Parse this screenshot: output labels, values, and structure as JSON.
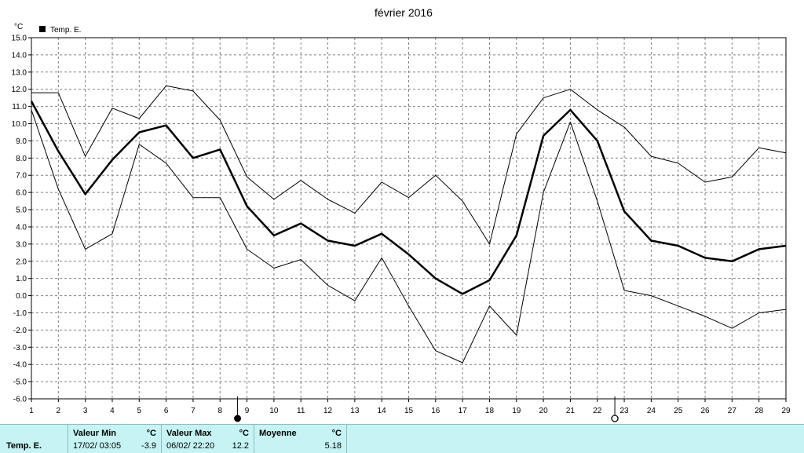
{
  "chart_data": {
    "type": "line",
    "title": "février 2016",
    "ylabel": "°C",
    "legend": {
      "label": "Temp. E.",
      "placement": "top-left"
    },
    "ylim": [
      -6.0,
      15.0
    ],
    "xlim": [
      1,
      29
    ],
    "yticks": [
      "15.0",
      "14.0",
      "13.0",
      "12.0",
      "11.0",
      "10.0",
      "9.0",
      "8.0",
      "7.0",
      "6.0",
      "5.0",
      "4.0",
      "3.0",
      "2.0",
      "1.0",
      "0.0",
      "-1.0",
      "-2.0",
      "-3.0",
      "-4.0",
      "-5.0",
      "-6.0"
    ],
    "x": [
      1,
      2,
      3,
      4,
      5,
      6,
      7,
      8,
      9,
      10,
      11,
      12,
      13,
      14,
      15,
      16,
      17,
      18,
      19,
      20,
      21,
      22,
      23,
      24,
      25,
      26,
      27,
      28,
      29
    ],
    "grid": true,
    "markers": [
      {
        "x": 9,
        "symbol": "filled-circle",
        "color": "#000000"
      },
      {
        "x": 23,
        "symbol": "open-circle",
        "color": "#000000"
      }
    ],
    "series": [
      {
        "role": "max",
        "values": [
          11.8,
          11.8,
          8.1,
          10.9,
          10.3,
          12.2,
          11.9,
          10.2,
          6.9,
          5.6,
          6.7,
          5.6,
          4.8,
          6.6,
          5.7,
          7.0,
          5.5,
          3.0,
          9.4,
          11.5,
          12.0,
          10.8,
          9.8,
          8.1,
          7.7,
          6.6,
          6.9,
          8.6,
          8.3
        ],
        "color": "#000000",
        "width": 1
      },
      {
        "role": "mean",
        "values": [
          11.3,
          8.4,
          5.9,
          7.9,
          9.5,
          9.9,
          8.0,
          8.5,
          5.2,
          3.5,
          4.2,
          3.2,
          2.9,
          3.6,
          2.4,
          1.0,
          0.1,
          0.9,
          3.5,
          9.3,
          10.8,
          9.0,
          4.9,
          3.2,
          2.9,
          2.2,
          2.0,
          2.7,
          2.9
        ],
        "color": "#000000",
        "width": 2.5
      },
      {
        "role": "min",
        "values": [
          10.8,
          6.2,
          2.7,
          3.6,
          8.8,
          7.7,
          5.7,
          5.7,
          2.7,
          1.6,
          2.1,
          0.6,
          -0.3,
          2.2,
          -0.6,
          -3.2,
          -3.9,
          -0.6,
          -2.3,
          6.0,
          10.1,
          5.5,
          0.3,
          0.0,
          -0.6,
          -1.2,
          -1.9,
          -1.0,
          -0.8
        ],
        "color": "#000000",
        "width": 1
      }
    ]
  },
  "stats_bar": {
    "series_label": "Temp. E.",
    "min": {
      "header": "Valeur Min",
      "unit": "°C",
      "date": "17/02/  03:05",
      "value": "-3.9"
    },
    "max": {
      "header": "Valeur Max",
      "unit": "°C",
      "date": "06/02/  22:20",
      "value": "12.2"
    },
    "mean": {
      "header": "Moyenne",
      "unit": "°C",
      "value": "5.18"
    }
  },
  "colors": {
    "stats_background": "#c6f3f3",
    "grid": "#808080",
    "line": "#000000"
  }
}
